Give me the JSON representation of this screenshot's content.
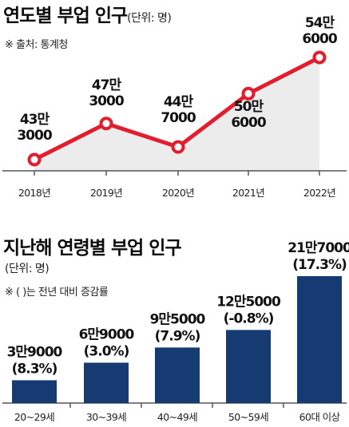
{
  "chart1": {
    "title": "연도별 부업 인구",
    "unit": "(단위: 명)",
    "source": "※ 출처: 통계청"
  },
  "chart2": {
    "title": "지난해 연령별 부업 인구",
    "unit": "(단위: 명)",
    "note": "※ (   )는 전년 대비 증감률"
  },
  "colors": {
    "line": "#e11d2e",
    "area": "#ececec",
    "bar": "#163b72",
    "axis": "#555555"
  },
  "chart_data": [
    {
      "type": "line",
      "title": "연도별 부업 인구",
      "unit": "명",
      "categories": [
        "2018년",
        "2019년",
        "2020년",
        "2021년",
        "2022년"
      ],
      "values": [
        433000,
        473000,
        447000,
        506000,
        546000
      ],
      "value_labels": [
        [
          "43만",
          "3000"
        ],
        [
          "47만",
          "3000"
        ],
        [
          "44만",
          "7000"
        ],
        [
          "50만",
          "6000"
        ],
        [
          "54만",
          "6000"
        ]
      ],
      "ylim": [
        390000,
        575000
      ],
      "grid": false,
      "legend": "none"
    },
    {
      "type": "bar",
      "title": "지난해 연령별 부업 인구",
      "unit": "명",
      "categories": [
        "20~29세",
        "30~39세",
        "40~49세",
        "50~59세",
        "60대 이상"
      ],
      "values": [
        39000,
        69000,
        95000,
        125000,
        217000
      ],
      "value_labels": [
        [
          "3만9000",
          "(8.3%)"
        ],
        [
          "6만9000",
          "(3.0%)"
        ],
        [
          "9만5000",
          "(7.9%)"
        ],
        [
          "12만5000",
          "(-0.8%)"
        ],
        [
          "21만7000",
          "(17.3%)"
        ]
      ],
      "change_pct": [
        8.3,
        3.0,
        7.9,
        -0.8,
        17.3
      ],
      "ylim": [
        0,
        217000
      ],
      "grid": false,
      "legend": "none"
    }
  ]
}
